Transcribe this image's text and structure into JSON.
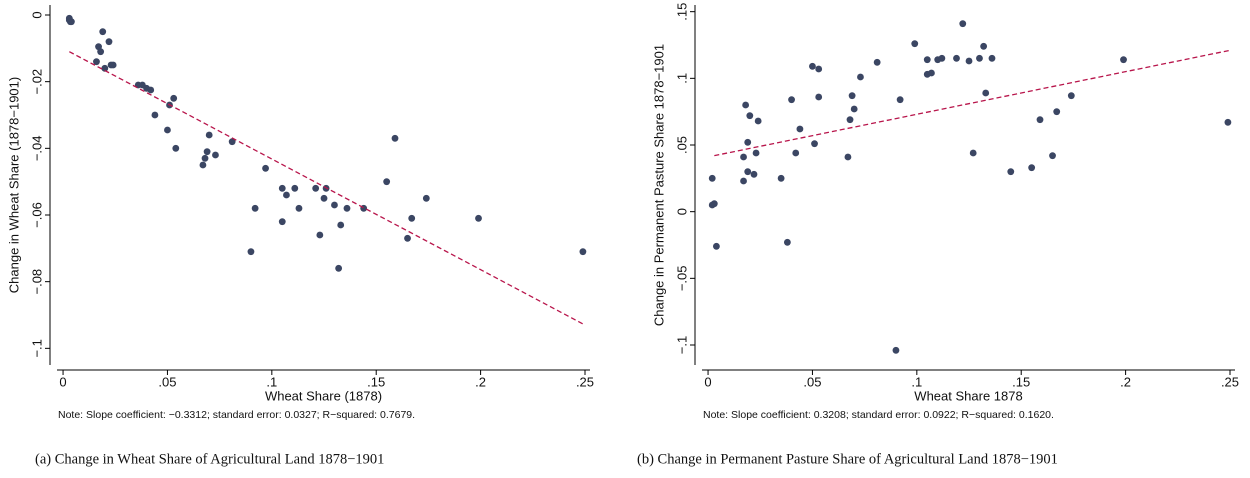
{
  "chart_data": [
    {
      "type": "scatter",
      "xlabel": "Wheat Share (1878)",
      "ylabel": "Change in Wheat Share (1878−1901)",
      "note": "Note: Slope coefficient: −0.3312; standard error: 0.0327; R−squared: 0.7679.",
      "caption": "(a)  Change in Wheat Share of Agricultural Land 1878−1901",
      "xlim": [
        -0.0029,
        0.2524
      ],
      "ylim": [
        -0.105,
        0.003
      ],
      "xticks": [
        0,
        {
          "value": 0.05,
          "label": ".05"
        },
        {
          "value": 0.1,
          "label": ".1"
        },
        {
          "value": 0.15,
          "label": ".15"
        },
        {
          "value": 0.2,
          "label": ".2"
        },
        {
          "value": 0.25,
          "label": ".25"
        }
      ],
      "yticks": [
        0,
        {
          "value": -0.02,
          "label": "−.02"
        },
        {
          "value": -0.04,
          "label": "−.04"
        },
        {
          "value": -0.06,
          "label": "−.06"
        },
        {
          "value": -0.08,
          "label": "−.08"
        },
        {
          "value": -0.1,
          "label": "−.1"
        }
      ],
      "color": "#3b4663",
      "x": [
        0.003,
        0.003,
        0.0035,
        0.004,
        0.019,
        0.017,
        0.018,
        0.022,
        0.016,
        0.02,
        0.023,
        0.024,
        0.036,
        0.038,
        0.04,
        0.042,
        0.044,
        0.053,
        0.051,
        0.05,
        0.054,
        0.07,
        0.069,
        0.068,
        0.067,
        0.073,
        0.081,
        0.097,
        0.092,
        0.09,
        0.105,
        0.107,
        0.111,
        0.113,
        0.105,
        0.121,
        0.126,
        0.125,
        0.13,
        0.123,
        0.133,
        0.132,
        0.136,
        0.144,
        0.155,
        0.159,
        0.167,
        0.165,
        0.174,
        0.199,
        0.249
      ],
      "values": [
        -0.001,
        -0.0015,
        -0.002,
        -0.002,
        -0.005,
        -0.0095,
        -0.011,
        -0.008,
        -0.014,
        -0.016,
        -0.015,
        -0.015,
        -0.021,
        -0.021,
        -0.022,
        -0.0225,
        -0.03,
        -0.025,
        -0.027,
        -0.0345,
        -0.04,
        -0.036,
        -0.041,
        -0.043,
        -0.045,
        -0.042,
        -0.038,
        -0.046,
        -0.058,
        -0.071,
        -0.052,
        -0.054,
        -0.052,
        -0.058,
        -0.062,
        -0.052,
        -0.052,
        -0.055,
        -0.057,
        -0.066,
        -0.063,
        -0.076,
        -0.058,
        -0.058,
        -0.05,
        -0.037,
        -0.061,
        -0.067,
        -0.055,
        -0.061,
        -0.071
      ],
      "fit_line": {
        "color": "#b8154b",
        "x": [
          0.003,
          0.25
        ],
        "values": [
          -0.011,
          -0.093
        ]
      }
    },
    {
      "type": "scatter",
      "xlabel": "Wheat Share 1878",
      "ylabel": "Change in Permanent Pasture Share 1878−1901",
      "note": "Note: Slope coefficient: 0.3208; standard error: 0.0922; R−squared: 0.1620.",
      "caption": "(b)  Change in Permanent Pasture Share of Agricultural Land 1878−1901",
      "xlim": [
        -0.0029,
        0.2524
      ],
      "ylim": [
        -0.115,
        0.155
      ],
      "xticks": [
        0,
        {
          "value": 0.05,
          "label": ".05"
        },
        {
          "value": 0.1,
          "label": ".1"
        },
        {
          "value": 0.15,
          "label": ".15"
        },
        {
          "value": 0.2,
          "label": ".2"
        },
        {
          "value": 0.25,
          "label": ".25"
        }
      ],
      "yticks": [
        {
          "value": -0.1,
          "label": "−.1"
        },
        {
          "value": -0.05,
          "label": "−.05"
        },
        0,
        {
          "value": 0.05,
          "label": ".05"
        },
        {
          "value": 0.1,
          "label": ".1"
        },
        {
          "value": 0.15,
          "label": ".15"
        }
      ],
      "color": "#3b4663",
      "x": [
        0.002,
        0.002,
        0.003,
        0.004,
        0.017,
        0.017,
        0.018,
        0.019,
        0.02,
        0.019,
        0.022,
        0.023,
        0.024,
        0.035,
        0.038,
        0.04,
        0.042,
        0.044,
        0.05,
        0.053,
        0.053,
        0.051,
        0.067,
        0.068,
        0.069,
        0.07,
        0.073,
        0.081,
        0.09,
        0.092,
        0.099,
        0.105,
        0.105,
        0.107,
        0.11,
        0.112,
        0.119,
        0.122,
        0.125,
        0.127,
        0.13,
        0.132,
        0.133,
        0.136,
        0.145,
        0.155,
        0.159,
        0.165,
        0.167,
        0.174,
        0.199,
        0.249
      ],
      "values": [
        0.025,
        0.005,
        0.006,
        -0.026,
        0.023,
        0.041,
        0.08,
        0.052,
        0.072,
        0.03,
        0.028,
        0.044,
        0.068,
        0.025,
        -0.023,
        0.084,
        0.044,
        0.062,
        0.109,
        0.107,
        0.086,
        0.051,
        0.041,
        0.069,
        0.087,
        0.077,
        0.101,
        0.112,
        -0.104,
        0.084,
        0.126,
        0.114,
        0.103,
        0.104,
        0.114,
        0.115,
        0.115,
        0.141,
        0.113,
        0.044,
        0.115,
        0.124,
        0.089,
        0.115,
        0.03,
        0.033,
        0.069,
        0.042,
        0.075,
        0.087,
        0.114,
        0.067
      ],
      "fit_line": {
        "color": "#b8154b",
        "x": [
          0.003,
          0.25
        ],
        "values": [
          0.042,
          0.121
        ]
      }
    }
  ]
}
